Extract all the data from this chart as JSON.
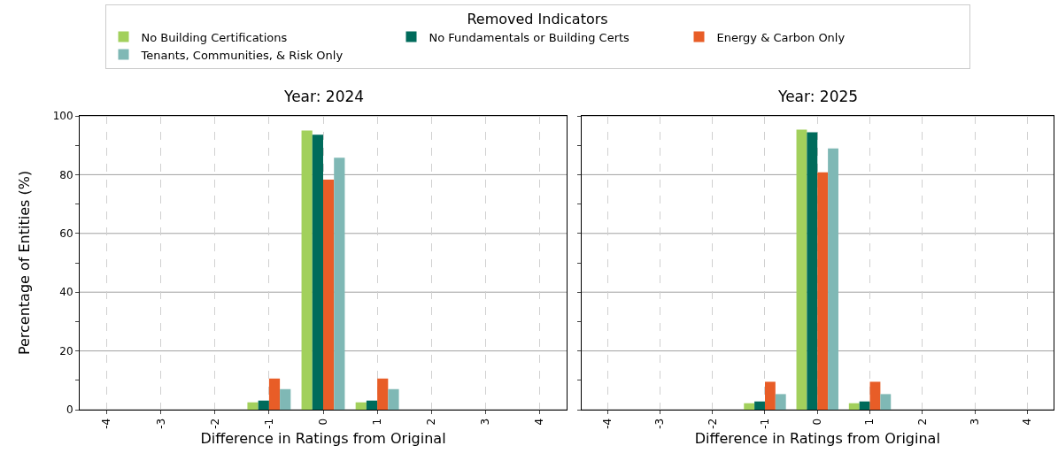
{
  "chart_data": [
    {
      "type": "bar",
      "title": "Year: 2024",
      "xlabel": "Difference in Ratings from Original",
      "ylabel": "Percentage of Entities (%)",
      "legend_title": "Removed Indicators",
      "legend": "top",
      "grid": true,
      "categories": [
        "-4",
        "-3",
        "-2",
        "-1",
        "0",
        "1",
        "2",
        "3",
        "4"
      ],
      "ylim": [
        0,
        100
      ],
      "yticks": [
        0,
        {
          "value": 10,
          "label": null
        },
        20,
        {
          "value": 30,
          "label": null
        },
        40,
        {
          "value": 50,
          "label": null
        },
        60,
        {
          "value": 70,
          "label": null
        },
        80,
        {
          "value": 90,
          "label": null
        },
        100
      ],
      "series": [
        {
          "name": "No Building Certifications",
          "color": "#a2d05c",
          "values": [
            0,
            0,
            0,
            2.5,
            95.0,
            2.5,
            0,
            0,
            0
          ]
        },
        {
          "name": "No Fundamentals or Building Certs",
          "color": "#006b5b",
          "values": [
            0,
            0,
            0,
            3.1,
            93.6,
            3.1,
            0,
            0,
            0
          ]
        },
        {
          "name": "Energy & Carbon Only",
          "color": "#e85d27",
          "values": [
            0,
            0,
            0,
            10.6,
            78.3,
            10.6,
            0,
            0,
            0
          ]
        },
        {
          "name": "Tenants, Communities, & Risk Only",
          "color": "#7fb8b5",
          "values": [
            0,
            0,
            0,
            7.0,
            85.8,
            7.0,
            0,
            0,
            0
          ]
        }
      ]
    },
    {
      "type": "bar",
      "title": "Year: 2025",
      "xlabel": "Difference in Ratings from Original",
      "grid": true,
      "tick_labels": "x",
      "categories": [
        "-4",
        "-3",
        "-2",
        "-1",
        "0",
        "1",
        "2",
        "3",
        "4"
      ],
      "ylim": [
        0,
        100
      ],
      "yticks": [
        0,
        {
          "value": 10,
          "label": null
        },
        20,
        {
          "value": 30,
          "label": null
        },
        40,
        {
          "value": 50,
          "label": null
        },
        60,
        {
          "value": 70,
          "label": null
        },
        80,
        {
          "value": 90,
          "label": null
        },
        100
      ],
      "series": [
        {
          "color": "#a2d05c",
          "values": [
            0,
            0,
            0,
            2.2,
            95.3,
            2.2,
            0,
            0,
            0
          ]
        },
        {
          "color": "#006b5b",
          "values": [
            0,
            0,
            0,
            2.8,
            94.4,
            2.8,
            0,
            0,
            0
          ]
        },
        {
          "color": "#e85d27",
          "values": [
            0,
            0,
            0,
            9.5,
            80.8,
            9.5,
            0,
            0,
            0
          ]
        },
        {
          "color": "#7fb8b5",
          "values": [
            0,
            0,
            0,
            5.3,
            88.9,
            5.3,
            0,
            0,
            0
          ]
        }
      ]
    }
  ]
}
